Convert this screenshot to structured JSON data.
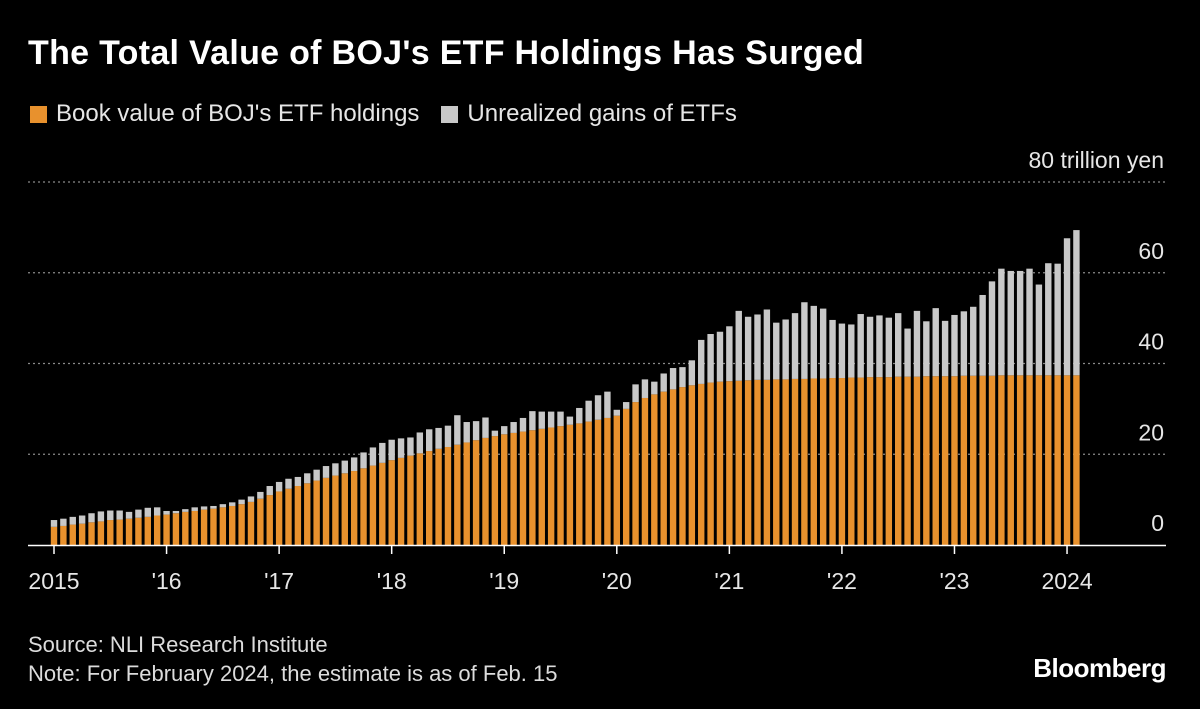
{
  "title": "The Total Value of BOJ's ETF Holdings Has Surged",
  "legend": {
    "book_label": "Book value of BOJ's ETF holdings",
    "gains_label": "Unrealized gains of ETFs",
    "book_color": "#e8912d",
    "gains_color": "#c8c8c8"
  },
  "footer": {
    "source": "Source: NLI Research Institute",
    "note": "Note: For February 2024, the estimate is as of Feb. 15",
    "brand": "Bloomberg"
  },
  "chart_data": {
    "type": "bar",
    "stacked": true,
    "title": "The Total Value of BOJ's ETF Holdings Has Surged",
    "y_unit_label": "80 trillion yen",
    "ylim": [
      0,
      80
    ],
    "yticks": [
      {
        "value": 0,
        "label": "0"
      },
      {
        "value": 20,
        "label": "20"
      },
      {
        "value": 40,
        "label": "40"
      },
      {
        "value": 60,
        "label": "60"
      },
      {
        "value": 80,
        "label": "80 trillion yen"
      }
    ],
    "xticks": [
      {
        "index": 0,
        "label": "2015"
      },
      {
        "index": 12,
        "label": "'16"
      },
      {
        "index": 24,
        "label": "'17"
      },
      {
        "index": 36,
        "label": "'18"
      },
      {
        "index": 48,
        "label": "'19"
      },
      {
        "index": 60,
        "label": "'20"
      },
      {
        "index": 72,
        "label": "'21"
      },
      {
        "index": 84,
        "label": "'22"
      },
      {
        "index": 96,
        "label": "'23"
      },
      {
        "index": 108,
        "label": "2024"
      }
    ],
    "x_start": "2015-01",
    "frequency": "monthly",
    "series": [
      {
        "name": "Book value of BOJ's ETF holdings",
        "values": [
          4.0,
          4.2,
          4.5,
          4.7,
          5.0,
          5.2,
          5.5,
          5.6,
          5.8,
          6.0,
          6.2,
          6.5,
          6.7,
          7.0,
          7.3,
          7.5,
          7.8,
          8.0,
          8.3,
          8.6,
          9.0,
          9.5,
          10.2,
          11.0,
          11.8,
          12.4,
          13.0,
          13.6,
          14.2,
          14.8,
          15.3,
          15.8,
          16.3,
          16.9,
          17.5,
          18.1,
          18.7,
          19.2,
          19.7,
          20.2,
          20.7,
          21.2,
          21.6,
          22.1,
          22.6,
          23.1,
          23.6,
          24.0,
          24.4,
          24.7,
          25.0,
          25.3,
          25.6,
          25.9,
          26.2,
          26.5,
          26.8,
          27.2,
          27.6,
          28.0,
          28.5,
          30.0,
          31.5,
          32.4,
          33.2,
          33.8,
          34.3,
          34.8,
          35.2,
          35.5,
          35.8,
          36.0,
          36.1,
          36.2,
          36.3,
          36.4,
          36.4,
          36.5,
          36.5,
          36.6,
          36.6,
          36.7,
          36.7,
          36.8,
          36.8,
          36.9,
          36.9,
          37.0,
          37.0,
          37.0,
          37.1,
          37.1,
          37.1,
          37.2,
          37.2,
          37.2,
          37.2,
          37.3,
          37.3,
          37.3,
          37.3,
          37.4,
          37.4,
          37.4,
          37.4,
          37.4,
          37.4,
          37.4,
          37.4,
          37.4
        ]
      },
      {
        "name": "Unrealized gains of ETFs",
        "values": [
          1.5,
          1.6,
          1.7,
          1.8,
          2.0,
          2.2,
          2.1,
          2.0,
          1.5,
          1.8,
          2.0,
          1.8,
          0.8,
          0.5,
          0.6,
          0.8,
          0.7,
          0.6,
          0.7,
          0.8,
          1.0,
          1.2,
          1.5,
          2.0,
          2.1,
          2.2,
          2.0,
          2.2,
          2.4,
          2.6,
          2.7,
          2.8,
          3.0,
          3.5,
          4.0,
          4.4,
          4.5,
          4.3,
          4.0,
          4.6,
          4.8,
          4.6,
          4.7,
          6.5,
          4.5,
          4.2,
          4.5,
          1.2,
          1.8,
          2.4,
          3.0,
          4.2,
          3.8,
          3.5,
          3.2,
          1.8,
          3.4,
          4.6,
          5.4,
          5.8,
          1.3,
          1.5,
          3.9,
          4.1,
          2.8,
          4.0,
          4.7,
          4.4,
          5.5,
          9.7,
          10.7,
          11.0,
          12.1,
          15.4,
          14.0,
          14.4,
          15.5,
          12.5,
          13.2,
          14.5,
          16.9,
          16.0,
          15.4,
          12.8,
          12.0,
          11.7,
          14.0,
          13.3,
          13.6,
          13.1,
          14.0,
          10.6,
          14.5,
          12.1,
          15.0,
          12.2,
          13.5,
          14.2,
          15.2,
          17.8,
          20.8,
          23.5,
          23.0,
          23.0,
          23.5,
          20.0,
          24.7,
          24.6,
          30.2,
          32.0
        ]
      }
    ],
    "source": "NLI Research Institute"
  }
}
